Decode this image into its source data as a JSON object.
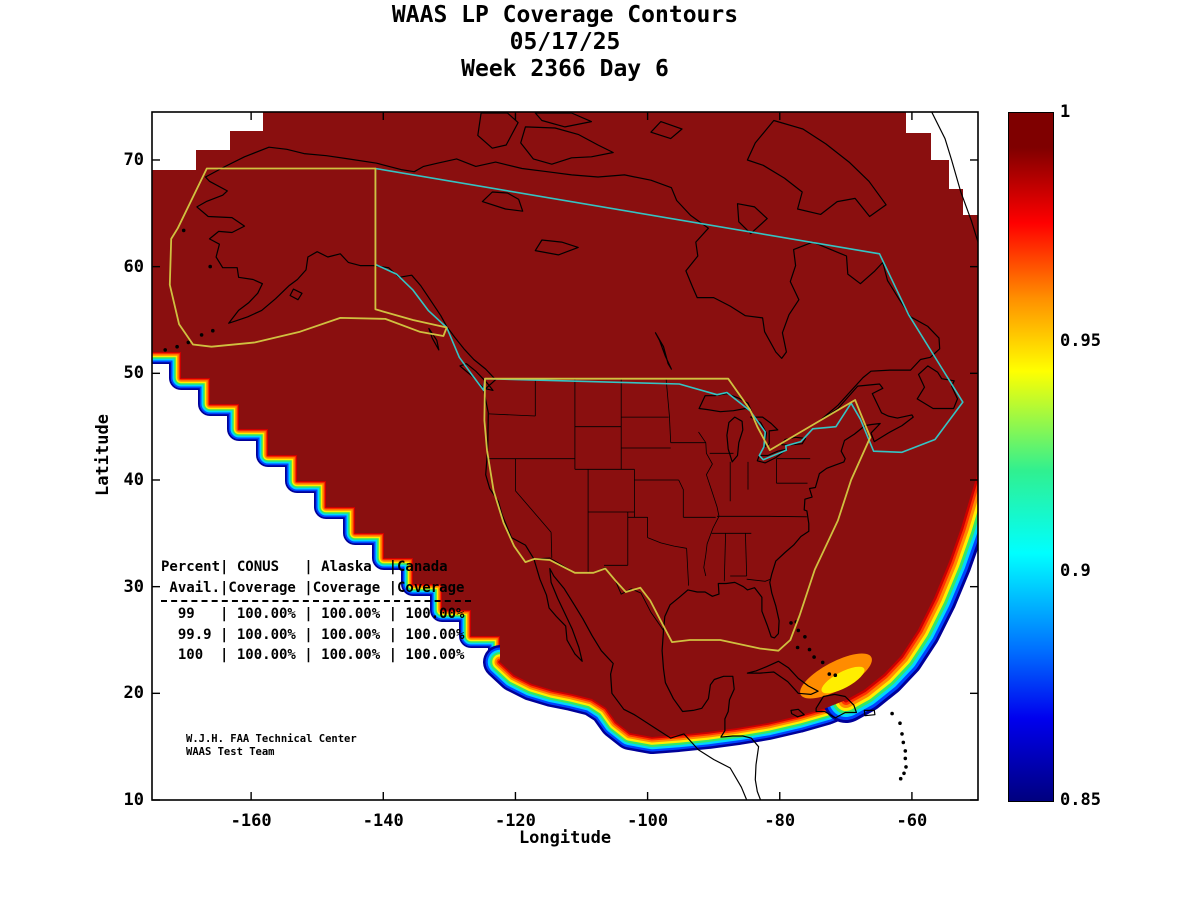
{
  "title": {
    "line1": "WAAS LP Coverage Contours",
    "line2": "05/17/25",
    "line3": "Week 2366 Day 6"
  },
  "axes": {
    "x_label": "Longitude",
    "y_label": "Latitude",
    "x_ticks": [
      "-160",
      "-140",
      "-120",
      "-100",
      "-80",
      "-60"
    ],
    "y_ticks": [
      "70",
      "60",
      "50",
      "40",
      "30",
      "20",
      "10"
    ]
  },
  "colorbar": {
    "tick_labels": [
      "1",
      "0.95",
      "0.9",
      "0.85"
    ]
  },
  "table": {
    "lines": [
      "Percent| CONUS   | Alaska  |Canada",
      " Avail.|Coverage |Coverage |Coverage",
      "  99   | 100.00% | 100.00% | 100.00%",
      "  99.9 | 100.00% | 100.00% | 100.00%",
      "  100  | 100.00% | 100.00% | 100.00%"
    ]
  },
  "credit": {
    "line1": "W.J.H. FAA Technical Center",
    "line2": "WAAS Test Team"
  },
  "colors": {
    "coverage_fill": "#8a0f0f",
    "conus_alaska_boundary": "#d0c040",
    "canada_boundary": "#35c4c4",
    "coastline": "#000000",
    "fringe": [
      "#000099",
      "#0044ff",
      "#00d4ff",
      "#33e866",
      "#ffee00",
      "#ff8c00",
      "#ff3300",
      "#cc0000"
    ]
  },
  "chart_data": {
    "type": "heatmap",
    "title": "WAAS LP Coverage Contours",
    "date": "05/17/25",
    "week": 2366,
    "day": 6,
    "xlabel": "Longitude",
    "ylabel": "Latitude",
    "xlim": [
      -175,
      -50
    ],
    "ylim": [
      10,
      75
    ],
    "x_ticks": [
      -160,
      -140,
      -120,
      -100,
      -80,
      -60
    ],
    "y_ticks": [
      10,
      20,
      30,
      40,
      50,
      60,
      70
    ],
    "grid": false,
    "colorbar": {
      "min": 0.85,
      "max": 1,
      "ticks": [
        0.85,
        0.9,
        0.95,
        1
      ],
      "colormap": "jet",
      "orientation": "vertical",
      "position": "right"
    },
    "value_field": "WAAS LP availability fraction",
    "coverage_summary": "Availability = 1.0 (dark red) covers virtually all of North America (CONUS, Alaska, Canada); values taper from 1.0 down to 0.85 through a jet-colormap contour fringe along the Pacific, Gulf/Caribbean and Atlantic edges of the coverage region, with a wider low-availability pocket east of Florida/Bahamas.",
    "regions_outlined": [
      "CONUS (yellow boundary)",
      "Alaska (yellow boundary)",
      "Canada (cyan boundary)",
      "North America coastlines and US state borders (black)"
    ],
    "availability_table": {
      "columns": [
        "Percent Avail.",
        "CONUS Coverage",
        "Alaska Coverage",
        "Canada Coverage"
      ],
      "rows": [
        [
          "99",
          "100.00%",
          "100.00%",
          "100.00%"
        ],
        [
          "99.9",
          "100.00%",
          "100.00%",
          "100.00%"
        ],
        [
          "100",
          "100.00%",
          "100.00%",
          "100.00%"
        ]
      ]
    },
    "credit": [
      "W.J.H. FAA Technical Center",
      "WAAS Test Team"
    ]
  }
}
